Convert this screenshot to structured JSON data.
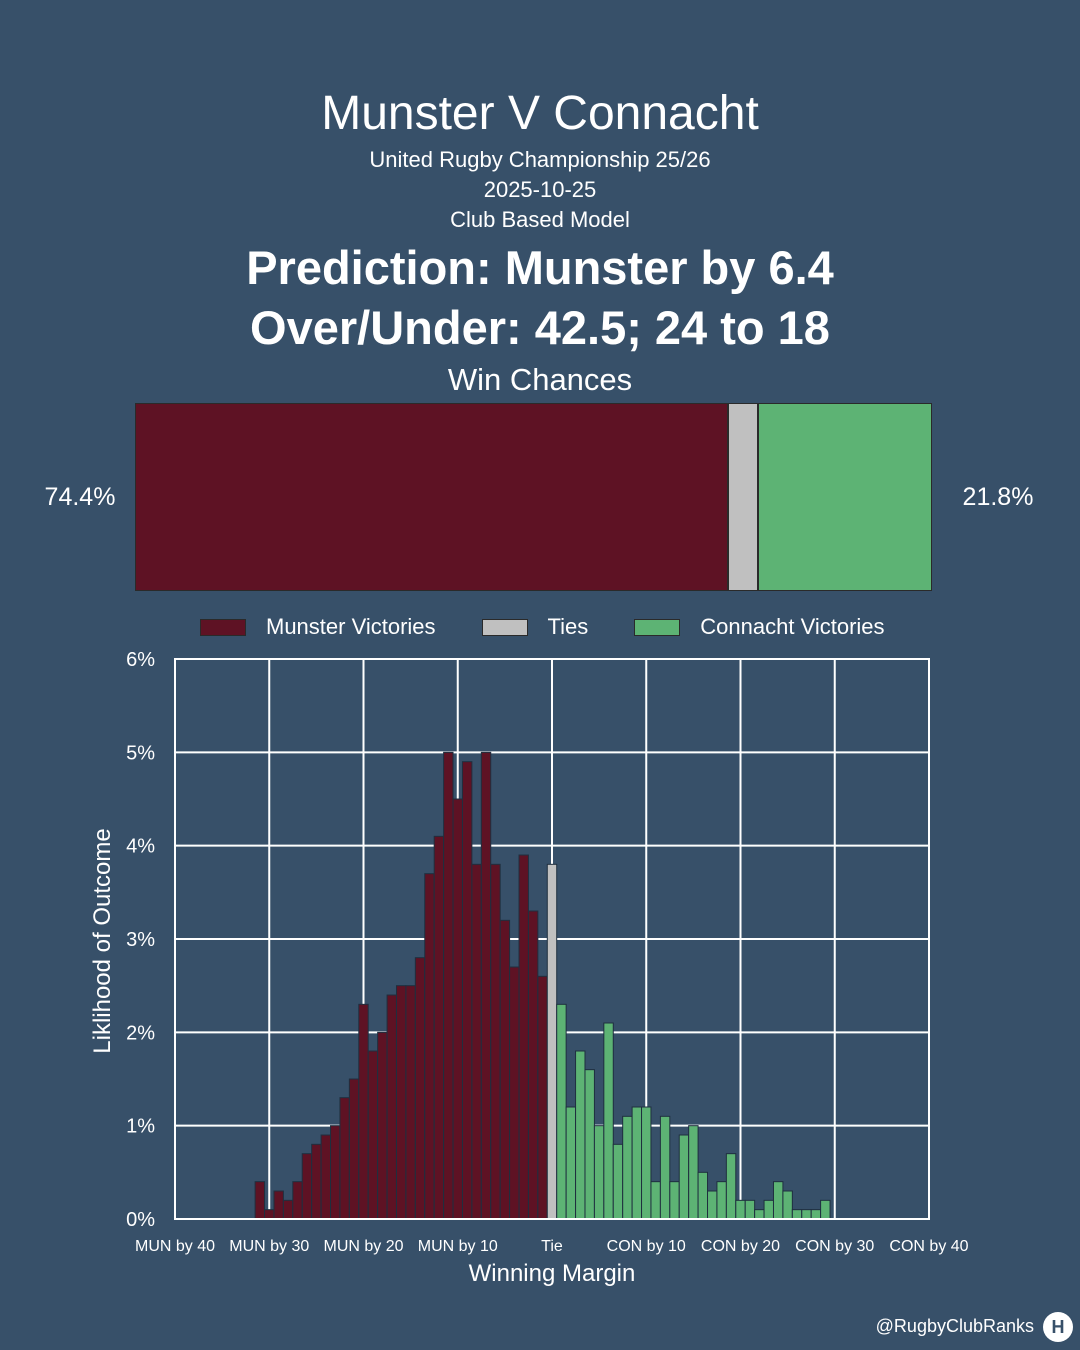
{
  "header": {
    "title": "Munster V Connacht",
    "competition": "United Rugby Championship 25/26",
    "date": "2025-10-25",
    "model": "Club Based Model",
    "prediction": "Prediction: Munster by 6.4",
    "over_under": "Over/Under: 42.5; 24 to 18",
    "win_chances_label": "Win Chances"
  },
  "win_chances": {
    "munster_pct_text": "74.4%",
    "connacht_pct_text": "21.8%",
    "munster": 74.4,
    "tie": 3.8,
    "connacht": 21.8
  },
  "legend": {
    "munster": "Munster Victories",
    "ties": "Ties",
    "connacht": "Connacht Victories"
  },
  "colors": {
    "background": "#375069",
    "munster": "#5e1224",
    "tie": "#c0c0c0",
    "connacht": "#5db374",
    "grid": "#ffffff"
  },
  "footer": {
    "handle": "@RugbyClubRanks",
    "logo_glyph": "H"
  },
  "chart_data": {
    "type": "bar",
    "xlabel": "Winning Margin",
    "ylabel": "Liklihood of Outcome",
    "xlim": [
      -40,
      40
    ],
    "ylim": [
      0,
      6
    ],
    "x_ticks": [
      -40,
      -30,
      -20,
      -10,
      0,
      10,
      20,
      30,
      40
    ],
    "x_tick_labels": [
      "MUN by 40",
      "MUN by 30",
      "MUN by 20",
      "MUN by 10",
      "Tie",
      "CON by 10",
      "CON by 20",
      "CON by 30",
      "CON by 40"
    ],
    "y_ticks": [
      0,
      1,
      2,
      3,
      4,
      5,
      6
    ],
    "y_tick_labels": [
      "0%",
      "1%",
      "2%",
      "3%",
      "4%",
      "5%",
      "6%"
    ],
    "grid": true,
    "series": [
      {
        "name": "Munster Victories",
        "x": [
          -31,
          -30,
          -29,
          -28,
          -27,
          -26,
          -25,
          -24,
          -23,
          -22,
          -21,
          -20,
          -19,
          -18,
          -17,
          -16,
          -15,
          -14,
          -13,
          -12,
          -11,
          -10,
          -9,
          -8,
          -7,
          -6,
          -5,
          -4,
          -3,
          -2,
          -1
        ],
        "values": [
          0.4,
          0.1,
          0.3,
          0.2,
          0.4,
          0.7,
          0.8,
          0.9,
          1.0,
          1.3,
          1.5,
          2.3,
          1.8,
          2.0,
          2.4,
          2.5,
          2.5,
          2.8,
          3.7,
          4.1,
          5.0,
          4.5,
          4.9,
          3.8,
          5.0,
          3.8,
          3.2,
          2.7,
          3.9,
          3.3,
          2.6
        ]
      },
      {
        "name": "Ties",
        "x": [
          0
        ],
        "values": [
          3.8
        ]
      },
      {
        "name": "Connacht Victories",
        "x": [
          1,
          2,
          3,
          4,
          5,
          6,
          7,
          8,
          9,
          10,
          11,
          12,
          13,
          14,
          15,
          16,
          17,
          18,
          19,
          20,
          21,
          22,
          23,
          24,
          25,
          26,
          27,
          28,
          29
        ],
        "values": [
          2.3,
          1.2,
          1.8,
          1.6,
          1.0,
          2.1,
          0.8,
          1.1,
          1.2,
          1.2,
          0.4,
          1.1,
          0.4,
          0.9,
          1.0,
          0.5,
          0.3,
          0.4,
          0.7,
          0.2,
          0.2,
          0.1,
          0.2,
          0.4,
          0.3,
          0.1,
          0.1,
          0.1,
          0.2
        ]
      }
    ]
  }
}
